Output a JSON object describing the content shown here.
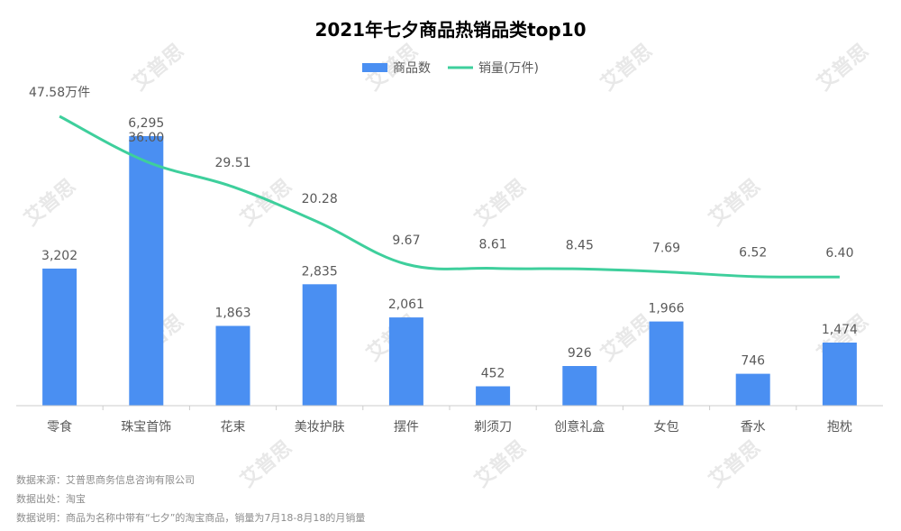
{
  "chart_data": {
    "type": "bar+line",
    "title": "2021年七夕商品热销品类top10",
    "categories": [
      "零食",
      "珠宝首饰",
      "花束",
      "美妆护肤",
      "摆件",
      "剃须刀",
      "创意礼盒",
      "女包",
      "香水",
      "抱枕"
    ],
    "series": [
      {
        "name": "商品数",
        "type": "bar",
        "values": [
          3202,
          6295,
          1863,
          2835,
          2061,
          452,
          926,
          1966,
          746,
          1474
        ],
        "labels": [
          "3,202",
          "6,295",
          "1,863",
          "2,835",
          "2,061",
          "452",
          "926",
          "1,966",
          "746",
          "1,474"
        ],
        "color": "#4a8ff2"
      },
      {
        "name": "销量(万件)",
        "type": "line",
        "values": [
          47.58,
          36.0,
          29.51,
          20.28,
          9.67,
          8.61,
          8.45,
          7.69,
          6.52,
          6.4
        ],
        "labels": [
          "47.58万件",
          "36.00",
          "29.51",
          "20.28",
          "9.67",
          "8.61",
          "8.45",
          "7.69",
          "6.52",
          "6.40"
        ],
        "color": "#3ecf9c"
      }
    ],
    "bar_axis_max": 6600,
    "line_axis_range": [
      -26.6,
      52.0
    ],
    "legend_position": "top-center",
    "grid": false
  },
  "notes": {
    "source": "数据来源：艾普思商务信息咨询有限公司",
    "origin": "数据出处：淘宝",
    "description": "数据说明：商品为名称中带有“七夕”的淘宝商品，销量为7月18-8月18的月销量"
  },
  "watermark": "艾普思",
  "colors": {
    "bar": "#4a8ff2",
    "line": "#3ecf9c",
    "axis": "#cccccc",
    "text": "#595959"
  }
}
